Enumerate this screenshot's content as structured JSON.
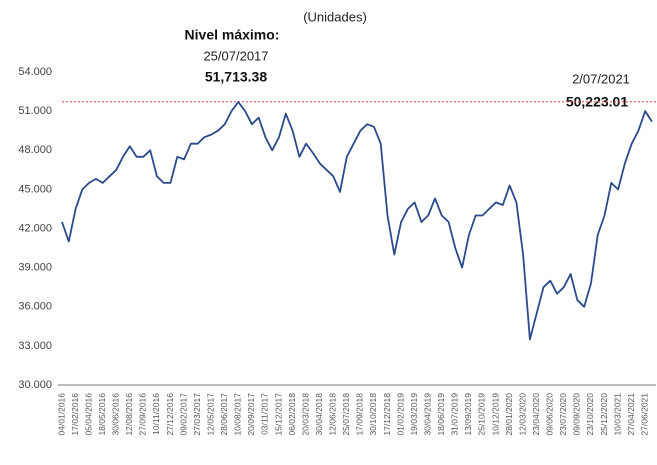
{
  "chart_data": {
    "type": "line",
    "subtitle": "(Unidades)",
    "annotations": {
      "title": "Nivel máximo:",
      "peak": {
        "date": "25/07/2017",
        "value": 51713.38,
        "label": "51,713.38"
      },
      "last": {
        "date": "2/07/2021",
        "value": 50223.01,
        "label": "50,223.01"
      },
      "reference_color": "#e05555"
    },
    "categories": [
      "04/01/2016",
      null,
      "17/02/2016",
      null,
      "05/04/2016",
      null,
      "18/05/2016",
      null,
      "30/06/2016",
      null,
      "12/08/2016",
      null,
      "27/09/2016",
      null,
      "10/11/2016",
      null,
      "27/12/2016",
      null,
      "09/02/2017",
      null,
      "27/03/2017",
      null,
      "12/05/2017",
      null,
      "28/06/2017",
      null,
      "10/08/2017",
      null,
      "20/09/2017",
      null,
      "03/11/2017",
      null,
      "15/12/2017",
      null,
      "06/02/2018",
      null,
      "20/03/2018",
      null,
      "30/04/2018",
      null,
      "12/06/2018",
      null,
      "25/07/2018",
      null,
      "17/09/2018",
      null,
      "30/10/2018",
      null,
      "17/12/2018",
      null,
      "01/02/2019",
      null,
      "19/03/2019",
      null,
      "30/04/2019",
      null,
      "18/06/2019",
      null,
      "31/07/2019",
      null,
      "13/09/2019",
      null,
      "25/10/2019",
      null,
      "10/12/2019",
      null,
      "28/01/2020",
      null,
      "12/03/2020",
      null,
      "23/04/2020",
      null,
      "09/06/2020",
      null,
      "23/07/2020",
      null,
      "09/09/2020",
      null,
      "23/10/2020",
      null,
      "25/12/2020",
      null,
      "10/03/2021",
      null,
      "27/04/2021",
      null,
      "27/06/2021",
      null
    ],
    "series": [
      {
        "color": "#2b4a8b",
        "values": [
          42500,
          41000,
          43500,
          45000,
          45500,
          45800,
          45500,
          46000,
          46500,
          47500,
          48300,
          47500,
          47500,
          48000,
          46000,
          45500,
          45500,
          47500,
          47300,
          48500,
          48500,
          49000,
          49200,
          49500,
          50000,
          51000,
          51700,
          51000,
          50000,
          50500,
          49000,
          48000,
          49000,
          50800,
          49500,
          47500,
          48500,
          47800,
          47000,
          46500,
          46000,
          44800,
          47500,
          48500,
          49500,
          50000,
          49800,
          48500,
          43000,
          40000,
          42500,
          43500,
          44000,
          42500,
          43000,
          44300,
          43000,
          42500,
          40500,
          39000,
          41500,
          43000,
          43000,
          43500,
          44000,
          43800,
          45300,
          44000,
          40000,
          33500,
          35500,
          37500,
          38000,
          37000,
          37500,
          38500,
          36500,
          36000,
          37800,
          41500,
          43000,
          45500,
          45000,
          47000,
          48500,
          49500,
          51000,
          50200
        ]
      }
    ],
    "ylim": [
      30000,
      54000
    ],
    "yticks": [
      {
        "value": 30000,
        "label": "30.000"
      },
      {
        "value": 33000,
        "label": "33.000"
      },
      {
        "value": 36000,
        "label": "36.000"
      },
      {
        "value": 39000,
        "label": "39.000"
      },
      {
        "value": 42000,
        "label": "42.000"
      },
      {
        "value": 45000,
        "label": "45.000"
      },
      {
        "value": 48000,
        "label": "48.000"
      },
      {
        "value": 51000,
        "label": "51.000"
      },
      {
        "value": 54000,
        "label": "54.000"
      }
    ]
  }
}
